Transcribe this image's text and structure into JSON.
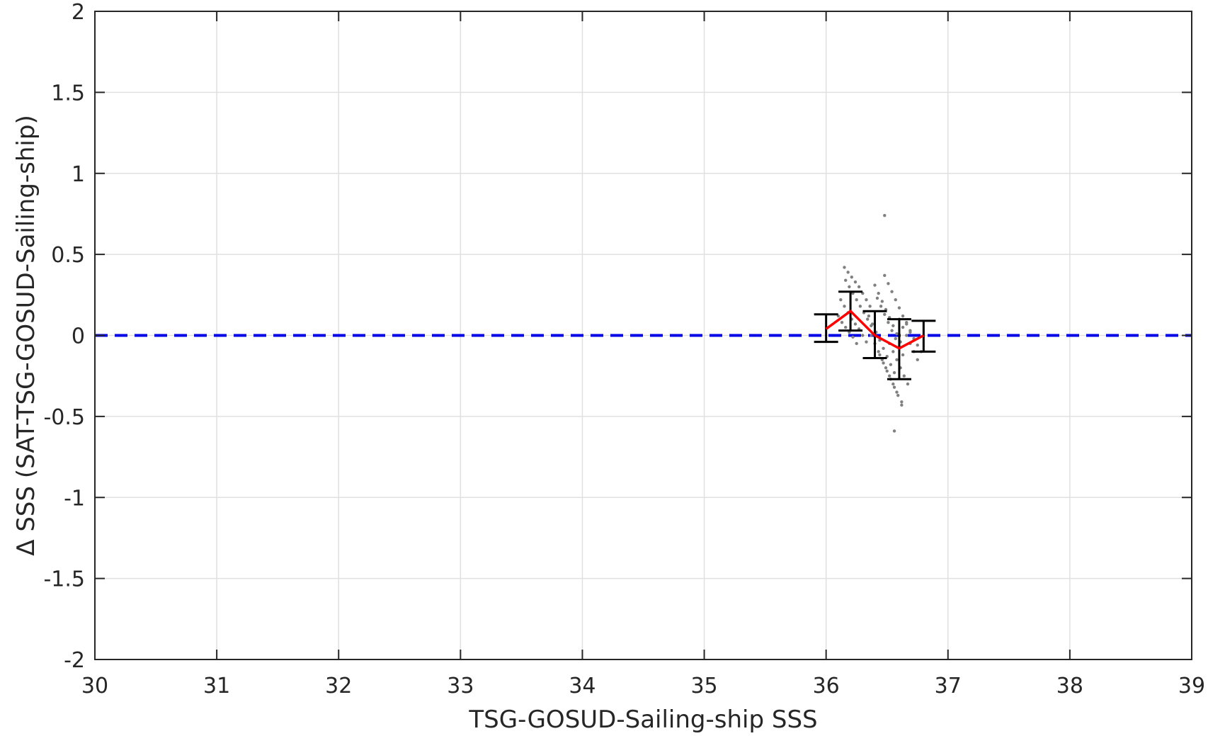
{
  "chart_data": {
    "type": "scatter",
    "title": "",
    "xlabel": "TSG-GOSUD-Sailing-ship SSS",
    "ylabel": "Δ SSS (SAT-TSG-GOSUD-Sailing-ship)",
    "xlim": [
      30,
      39
    ],
    "ylim": [
      -2,
      2
    ],
    "x_ticks": [
      "30",
      "31",
      "32",
      "33",
      "34",
      "35",
      "36",
      "37",
      "38",
      "39"
    ],
    "y_ticks": [
      "2",
      "1.5",
      "1",
      "0.5",
      "0",
      "-0.5",
      "-1",
      "-1.5",
      "-2"
    ],
    "grid": true,
    "legend": "none",
    "zero_line": {
      "y": 0,
      "style": "dashed",
      "color": "#0000e6"
    },
    "colors": {
      "scatter": "#808080",
      "mean_line": "#ff0000",
      "error_bars": "#000000",
      "axes": "#262626",
      "grid": "#e0e0e0"
    },
    "binned_stats": {
      "x": [
        36.0,
        36.2,
        36.4,
        36.6,
        36.8
      ],
      "mean": [
        0.04,
        0.15,
        0.0,
        -0.08,
        0.0
      ],
      "lower": [
        -0.04,
        0.03,
        -0.14,
        -0.27,
        -0.1
      ],
      "upper": [
        0.13,
        0.27,
        0.15,
        0.1,
        0.09
      ]
    },
    "scatter_points": [
      [
        36.48,
        0.74
      ],
      [
        36.56,
        -0.59
      ],
      [
        36.15,
        0.42
      ],
      [
        36.18,
        0.39
      ],
      [
        36.21,
        0.36
      ],
      [
        36.24,
        0.33
      ],
      [
        36.27,
        0.3
      ],
      [
        36.3,
        0.26
      ],
      [
        36.33,
        0.22
      ],
      [
        36.36,
        0.18
      ],
      [
        36.16,
        0.34
      ],
      [
        36.19,
        0.3
      ],
      [
        36.22,
        0.26
      ],
      [
        36.25,
        0.22
      ],
      [
        36.28,
        0.18
      ],
      [
        36.31,
        0.14
      ],
      [
        36.34,
        0.1
      ],
      [
        36.37,
        0.06
      ],
      [
        36.12,
        0.22
      ],
      [
        36.15,
        0.18
      ],
      [
        36.18,
        0.14
      ],
      [
        36.21,
        0.1
      ],
      [
        36.24,
        0.07
      ],
      [
        36.27,
        0.04
      ],
      [
        36.3,
        0.0
      ],
      [
        36.33,
        -0.04
      ],
      [
        36.1,
        0.12
      ],
      [
        36.13,
        0.08
      ],
      [
        36.16,
        0.05
      ],
      [
        36.19,
        0.02
      ],
      [
        36.22,
        -0.01
      ],
      [
        36.25,
        -0.05
      ],
      [
        36.4,
        0.31
      ],
      [
        36.43,
        0.26
      ],
      [
        36.46,
        0.21
      ],
      [
        36.49,
        0.16
      ],
      [
        36.52,
        0.11
      ],
      [
        36.55,
        0.06
      ],
      [
        36.58,
        0.01
      ],
      [
        36.61,
        -0.04
      ],
      [
        36.42,
        0.23
      ],
      [
        36.45,
        0.18
      ],
      [
        36.48,
        0.13
      ],
      [
        36.51,
        0.08
      ],
      [
        36.54,
        0.03
      ],
      [
        36.57,
        -0.02
      ],
      [
        36.6,
        -0.07
      ],
      [
        36.63,
        -0.12
      ],
      [
        36.48,
        0.37
      ],
      [
        36.51,
        0.32
      ],
      [
        36.54,
        0.27
      ],
      [
        36.57,
        0.22
      ],
      [
        36.6,
        0.17
      ],
      [
        36.63,
        0.12
      ],
      [
        36.66,
        0.07
      ],
      [
        36.69,
        0.02
      ],
      [
        36.35,
        0.12
      ],
      [
        36.38,
        0.07
      ],
      [
        36.41,
        0.02
      ],
      [
        36.44,
        -0.03
      ],
      [
        36.47,
        -0.08
      ],
      [
        36.5,
        -0.13
      ],
      [
        36.53,
        -0.18
      ],
      [
        36.56,
        -0.23
      ],
      [
        36.37,
        0.0
      ],
      [
        36.4,
        -0.05
      ],
      [
        36.43,
        -0.1
      ],
      [
        36.46,
        -0.15
      ],
      [
        36.49,
        -0.2
      ],
      [
        36.52,
        -0.25
      ],
      [
        36.55,
        -0.3
      ],
      [
        36.58,
        -0.35
      ],
      [
        36.44,
        -0.12
      ],
      [
        36.47,
        -0.17
      ],
      [
        36.5,
        -0.22
      ],
      [
        36.53,
        -0.27
      ],
      [
        36.56,
        -0.32
      ],
      [
        36.59,
        -0.37
      ],
      [
        36.62,
        -0.41
      ],
      [
        36.52,
        -0.05
      ],
      [
        36.55,
        -0.1
      ],
      [
        36.58,
        -0.15
      ],
      [
        36.61,
        -0.2
      ],
      [
        36.64,
        -0.25
      ],
      [
        36.67,
        -0.3
      ],
      [
        36.62,
        -0.43
      ],
      [
        36.6,
        0.1
      ],
      [
        36.63,
        0.05
      ],
      [
        36.66,
        0.0
      ],
      [
        36.69,
        -0.05
      ],
      [
        36.72,
        -0.1
      ],
      [
        36.75,
        -0.15
      ],
      [
        36.66,
        0.08
      ],
      [
        36.69,
        0.03
      ],
      [
        36.72,
        -0.02
      ],
      [
        36.75,
        -0.06
      ],
      [
        36.78,
        -0.1
      ]
    ]
  }
}
